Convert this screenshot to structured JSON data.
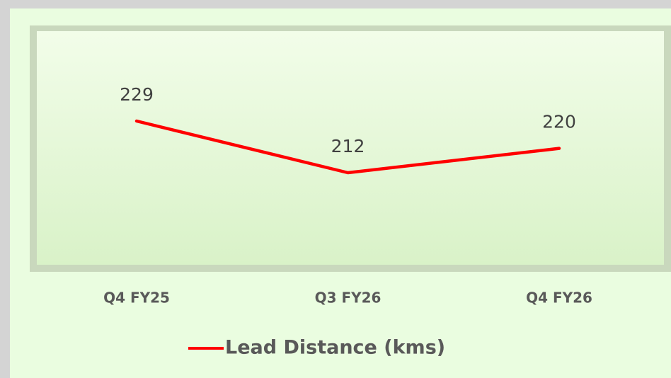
{
  "chart_data": {
    "type": "line",
    "categories": [
      "Q4 FY25",
      "Q3 FY26",
      "Q4 FY26"
    ],
    "series": [
      {
        "name": "Lead Distance (kms)",
        "color": "#ff0000",
        "values": [
          229,
          212,
          220
        ]
      }
    ]
  }
}
